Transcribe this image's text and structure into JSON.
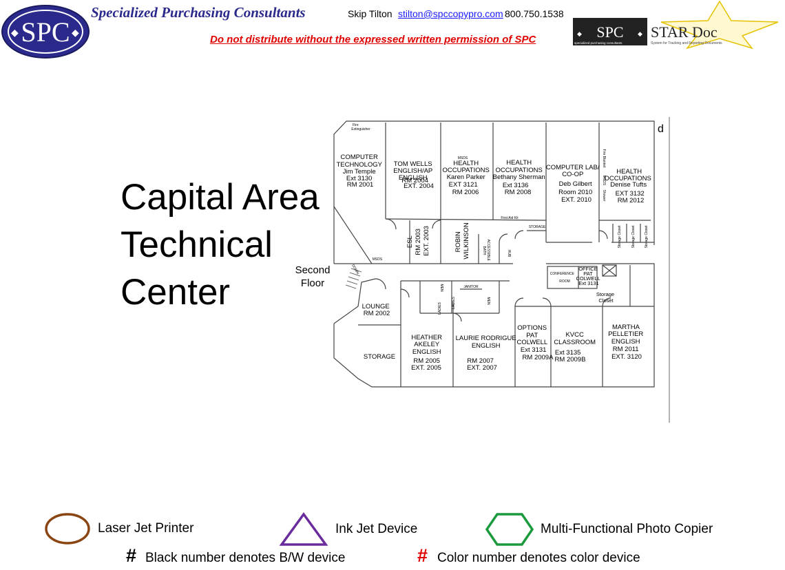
{
  "header": {
    "logo_text": "SPC",
    "company": "Specialized Purchasing Consultants",
    "contact_name": "Skip Tilton",
    "contact_email": "stilton@spccopypro.com",
    "contact_phone": "800.750.1538",
    "warning": "Do not distribute without the expressed written permission of SPC",
    "stardoc_logo": "SPC",
    "stardoc_title": "STAR Doc",
    "stardoc_sub1": "specialized purchasing consultants",
    "stardoc_sub2": "System for Tracking and Reporting Documents"
  },
  "title": {
    "line1": "Capital Area",
    "line2": "Technical",
    "line3": "Center"
  },
  "floor_label": {
    "line1": "Second",
    "line2": "Floor"
  },
  "plan": {
    "corner_letter": "d",
    "rooms": {
      "r1": [
        "COMPUTER",
        "TECHNOLOGY",
        "Jim Temple",
        "Ext 3130",
        "RM 2001"
      ],
      "r2": [
        "TOM WELLS",
        "ENGLISH/AP",
        "ENGLISH",
        "RM 2004",
        "EXT. 2004"
      ],
      "r3": [
        "HEALTH",
        "OCCUPATIONS",
        "Karen Parker",
        "EXT 3121",
        "RM 2006"
      ],
      "r4": [
        "HEALTH",
        "OCCUPATIONS",
        "Bethany Sherman",
        "Ext 3136",
        "RM 2008"
      ],
      "r5": [
        "COMPUTER LAB/",
        "CO-OP",
        "Deb Gilbert",
        "Room 2010",
        "EXT. 2010"
      ],
      "r6": [
        "HEALTH",
        "OCCUPATIONS",
        "Denise Tufts",
        "EXT 3132",
        "RM 2012"
      ],
      "esl": [
        "ESL",
        "RM 2003",
        "EXT. 2003"
      ],
      "robin": [
        "ROBIN",
        "WILKINSON"
      ],
      "office": [
        "OFFICE",
        "PAT",
        "COLWELL",
        "Ext 3131"
      ],
      "storage_closet": [
        "Storage",
        "Closet"
      ],
      "lounge": [
        "LOUNGE",
        "RM 2002"
      ],
      "storage": [
        "STORAGE"
      ],
      "heather": [
        "HEATHER",
        "AKELEY",
        "ENGLISH",
        "RM 2005",
        "EXT. 2005"
      ],
      "laurie": [
        "LAURIE RODRIGUE",
        "ENGLISH",
        "RM 2007",
        "EXT. 2007"
      ],
      "options": [
        "OPTIONS",
        "PAT",
        "COLWELL",
        "Ext 3131",
        "RM 2009A"
      ],
      "kvcc": [
        "KVCC",
        "CLASSROOM",
        "Ext 3135",
        "RM 2009B"
      ],
      "martha": [
        "MARTHA",
        "PELLETIER",
        "ENGLISH",
        "RM 2011",
        "EXT. 3120"
      ]
    },
    "small_labels": {
      "fire": [
        "Fire",
        "Extinguisher"
      ],
      "msds1": "MSDS",
      "msds2": "MSDS",
      "msds3": "MSDS",
      "first_aid": "First Aid Kit",
      "storage_small": "STORAGE",
      "hub": "HUB",
      "bath": [
        "ACCESSIBLE",
        "BATH"
      ],
      "janitor": "JANITOR",
      "men": "MEN",
      "ladies": "LADIES",
      "conference": [
        "CONFERENCE",
        "ROOM"
      ],
      "fire_blanket": "Fire Blanket",
      "shower": "Shower",
      "storage_closets": [
        "Storage Closet",
        "Storage Closet",
        "Storage Closet"
      ],
      "down": "DOWN"
    }
  },
  "legend": {
    "laser": "Laser Jet Printer",
    "inkjet": "Ink Jet Device",
    "mfp": "Multi-Functional Photo Copier",
    "hash_symbol": "#",
    "bw_note": "Black number denotes B/W device",
    "color_note": "Color number denotes color device",
    "colors": {
      "laser": "#8b4513",
      "inkjet": "#6a2c9c",
      "mfp": "#1a9a3c",
      "color_hash": "#e00000"
    }
  }
}
